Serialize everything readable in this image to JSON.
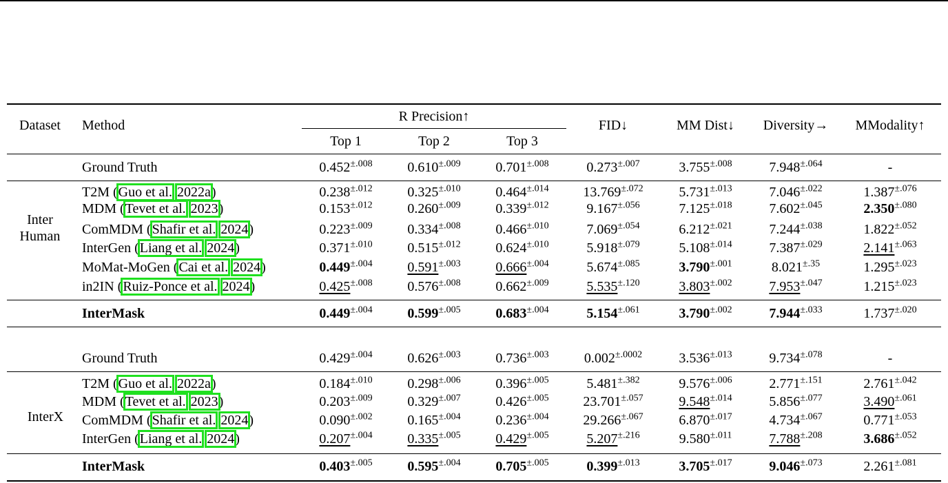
{
  "header": {
    "dataset": "Dataset",
    "method": "Method",
    "r_precision": "R Precision↑",
    "top1": "Top 1",
    "top2": "Top 2",
    "top3": "Top 3",
    "fid": "FID↓",
    "mm_dist": "MM Dist↓",
    "diversity": "Diversity→",
    "mmodality": "MModality↑"
  },
  "groups": [
    {
      "dataset_line1": "Inter",
      "dataset_line2": "Human",
      "rows": [
        {
          "name": "Ground Truth",
          "cells": [
            [
              "0.452",
              "±.008",
              0
            ],
            [
              "0.610",
              "±.009",
              0
            ],
            [
              "0.701",
              "±.008",
              0
            ],
            [
              "0.273",
              "±.007",
              0
            ],
            [
              "3.755",
              "±.008",
              0
            ],
            [
              "7.948",
              "±.064",
              0
            ],
            [
              "-",
              "",
              0
            ]
          ]
        },
        {
          "name": "T2M (",
          "cite": "Guo et al.",
          "cite2": "2022a",
          "close": ")",
          "cells": [
            [
              "0.238",
              "±.012",
              0
            ],
            [
              "0.325",
              "±.010",
              0
            ],
            [
              "0.464",
              "±.014",
              0
            ],
            [
              "13.769",
              "±.072",
              0
            ],
            [
              "5.731",
              "±.013",
              0
            ],
            [
              "7.046",
              "±.022",
              0
            ],
            [
              "1.387",
              "±.076",
              0
            ]
          ]
        },
        {
          "name": "MDM (",
          "cite": "Tevet et al.",
          "cite2": "2023",
          "close": ")",
          "cells": [
            [
              "0.153",
              "±.012",
              0
            ],
            [
              "0.260",
              "±.009",
              0
            ],
            [
              "0.339",
              "±.012",
              0
            ],
            [
              "9.167",
              "±.056",
              0
            ],
            [
              "7.125",
              "±.018",
              0
            ],
            [
              "7.602",
              "±.045",
              0
            ],
            [
              "2.350",
              "±.080",
              1
            ]
          ]
        },
        {
          "name": "ComMDM (",
          "cite": "Shafir et al.",
          "cite2": "2024",
          "close": ")",
          "cells": [
            [
              "0.223",
              "±.009",
              0
            ],
            [
              "0.334",
              "±.008",
              0
            ],
            [
              "0.466",
              "±.010",
              0
            ],
            [
              "7.069",
              "±.054",
              0
            ],
            [
              "6.212",
              "±.021",
              0
            ],
            [
              "7.244",
              "±.038",
              0
            ],
            [
              "1.822",
              "±.052",
              0
            ]
          ]
        },
        {
          "name": "InterGen (",
          "cite": "Liang et al.",
          "cite2": "2024",
          "close": ")",
          "cells": [
            [
              "0.371",
              "±.010",
              0
            ],
            [
              "0.515",
              "±.012",
              0
            ],
            [
              "0.624",
              "±.010",
              0
            ],
            [
              "5.918",
              "±.079",
              0
            ],
            [
              "5.108",
              "±.014",
              0
            ],
            [
              "7.387",
              "±.029",
              0
            ],
            [
              "2.141",
              "±.063",
              2
            ]
          ]
        },
        {
          "name": "MoMat-MoGen (",
          "cite": "Cai et al.",
          "cite2": "2024",
          "close": ")",
          "cells": [
            [
              "0.449",
              "±.004",
              1
            ],
            [
              "0.591",
              "±.003",
              2
            ],
            [
              "0.666",
              "±.004",
              2
            ],
            [
              "5.674",
              "±.085",
              0
            ],
            [
              "3.790",
              "±.001",
              1
            ],
            [
              "8.021",
              "±.35",
              0
            ],
            [
              "1.295",
              "±.023",
              0
            ]
          ]
        },
        {
          "name": "in2IN (",
          "cite": "Ruiz-Ponce et al.",
          "cite2": "2024",
          "close": ")",
          "cells": [
            [
              "0.425",
              "±.008",
              2
            ],
            [
              "0.576",
              "±.008",
              0
            ],
            [
              "0.662",
              "±.009",
              0
            ],
            [
              "5.535",
              "±.120",
              2
            ],
            [
              "3.803",
              "±.002",
              2
            ],
            [
              "7.953",
              "±.047",
              2
            ],
            [
              "1.215",
              "±.023",
              0
            ]
          ]
        },
        {
          "name": "InterMask",
          "bold": true,
          "cells": [
            [
              "0.449",
              "±.004",
              1
            ],
            [
              "0.599",
              "±.005",
              1
            ],
            [
              "0.683",
              "±.004",
              1
            ],
            [
              "5.154",
              "±.061",
              1
            ],
            [
              "3.790",
              "±.002",
              1
            ],
            [
              "7.944",
              "±.033",
              1
            ],
            [
              "1.737",
              "±.020",
              0
            ]
          ]
        }
      ]
    },
    {
      "dataset_line1": "InterX",
      "dataset_line2": "",
      "rows": [
        {
          "name": "Ground Truth",
          "cells": [
            [
              "0.429",
              "±.004",
              0
            ],
            [
              "0.626",
              "±.003",
              0
            ],
            [
              "0.736",
              "±.003",
              0
            ],
            [
              "0.002",
              "±.0002",
              0
            ],
            [
              "3.536",
              "±.013",
              0
            ],
            [
              "9.734",
              "±.078",
              0
            ],
            [
              "-",
              "",
              0
            ]
          ]
        },
        {
          "name": "T2M (",
          "cite": "Guo et al.",
          "cite2": "2022a",
          "close": ")",
          "cells": [
            [
              "0.184",
              "±.010",
              0
            ],
            [
              "0.298",
              "±.006",
              0
            ],
            [
              "0.396",
              "±.005",
              0
            ],
            [
              "5.481",
              "±.382",
              0
            ],
            [
              "9.576",
              "±.006",
              0
            ],
            [
              "2.771",
              "±.151",
              0
            ],
            [
              "2.761",
              "±.042",
              0
            ]
          ]
        },
        {
          "name": "MDM (",
          "cite": "Tevet et al.",
          "cite2": "2023",
          "close": ")",
          "cells": [
            [
              "0.203",
              "±.009",
              0
            ],
            [
              "0.329",
              "±.007",
              0
            ],
            [
              "0.426",
              "±.005",
              0
            ],
            [
              "23.701",
              "±.057",
              0
            ],
            [
              "9.548",
              "±.014",
              2
            ],
            [
              "5.856",
              "±.077",
              0
            ],
            [
              "3.490",
              "±.061",
              2
            ]
          ]
        },
        {
          "name": "ComMDM (",
          "cite": "Shafir et al.",
          "cite2": "2024",
          "close": ")",
          "cells": [
            [
              "0.090",
              "±.002",
              0
            ],
            [
              "0.165",
              "±.004",
              0
            ],
            [
              "0.236",
              "±.004",
              0
            ],
            [
              "29.266",
              "±.067",
              0
            ],
            [
              "6.870",
              "±.017",
              0
            ],
            [
              "4.734",
              "±.067",
              0
            ],
            [
              "0.771",
              "±.053",
              0
            ]
          ]
        },
        {
          "name": "InterGen (",
          "cite": "Liang et al.",
          "cite2": "2024",
          "close": ")",
          "cells": [
            [
              "0.207",
              "±.004",
              2
            ],
            [
              "0.335",
              "±.005",
              2
            ],
            [
              "0.429",
              "±.005",
              2
            ],
            [
              "5.207",
              "±.216",
              2
            ],
            [
              "9.580",
              "±.011",
              0
            ],
            [
              "7.788",
              "±.208",
              2
            ],
            [
              "3.686",
              "±.052",
              1
            ]
          ]
        },
        {
          "name": "InterMask",
          "bold": true,
          "cells": [
            [
              "0.403",
              "±.005",
              1
            ],
            [
              "0.595",
              "±.004",
              1
            ],
            [
              "0.705",
              "±.005",
              1
            ],
            [
              "0.399",
              "±.013",
              1
            ],
            [
              "3.705",
              "±.017",
              1
            ],
            [
              "9.046",
              "±.073",
              1
            ],
            [
              "2.261",
              "±.081",
              0
            ]
          ]
        }
      ]
    }
  ]
}
